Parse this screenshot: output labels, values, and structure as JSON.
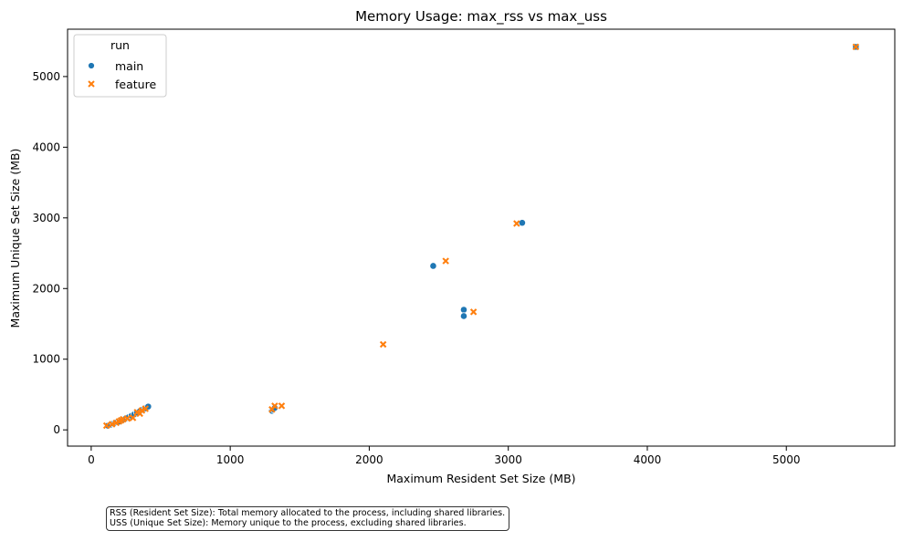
{
  "chart_data": {
    "type": "scatter",
    "title": "Memory Usage: max_rss vs max_uss",
    "xlabel": "Maximum Resident Set Size (MB)",
    "ylabel": "Maximum Unique Set Size (MB)",
    "xlim": [
      -170,
      5780
    ],
    "ylim": [
      -230,
      5670
    ],
    "xticks": [
      0,
      1000,
      2000,
      3000,
      4000,
      5000
    ],
    "yticks": [
      0,
      1000,
      2000,
      3000,
      4000,
      5000
    ],
    "grid": false,
    "legend": {
      "title": "run",
      "placement": "top-left"
    },
    "series": [
      {
        "name": "main",
        "marker": "circle",
        "color": "#1f77b4",
        "points": [
          [
            120,
            60
          ],
          [
            140,
            75
          ],
          [
            160,
            90
          ],
          [
            175,
            100
          ],
          [
            190,
            110
          ],
          [
            205,
            120
          ],
          [
            220,
            140
          ],
          [
            235,
            150
          ],
          [
            250,
            165
          ],
          [
            270,
            180
          ],
          [
            290,
            200
          ],
          [
            310,
            220
          ],
          [
            330,
            245
          ],
          [
            350,
            265
          ],
          [
            370,
            285
          ],
          [
            390,
            305
          ],
          [
            410,
            330
          ],
          [
            1300,
            270
          ],
          [
            1310,
            290
          ],
          [
            1320,
            310
          ],
          [
            2460,
            2320
          ],
          [
            2680,
            1700
          ],
          [
            2680,
            1610
          ],
          [
            3100,
            2930
          ],
          [
            5500,
            5420
          ]
        ]
      },
      {
        "name": "feature",
        "marker": "x",
        "color": "#ff7f0e",
        "points": [
          [
            110,
            60
          ],
          [
            150,
            80
          ],
          [
            180,
            100
          ],
          [
            200,
            120
          ],
          [
            215,
            135
          ],
          [
            230,
            150
          ],
          [
            260,
            160
          ],
          [
            300,
            170
          ],
          [
            330,
            250
          ],
          [
            350,
            230
          ],
          [
            365,
            275
          ],
          [
            390,
            300
          ],
          [
            1300,
            290
          ],
          [
            1320,
            340
          ],
          [
            1370,
            340
          ],
          [
            2100,
            1210
          ],
          [
            2550,
            2390
          ],
          [
            2750,
            1670
          ],
          [
            3060,
            2920
          ],
          [
            5500,
            5420
          ]
        ]
      }
    ]
  },
  "note": {
    "line1": "RSS (Resident Set Size): Total memory allocated to the process, including shared libraries.",
    "line2": "USS (Unique Set Size): Memory unique to the process, excluding shared libraries."
  }
}
